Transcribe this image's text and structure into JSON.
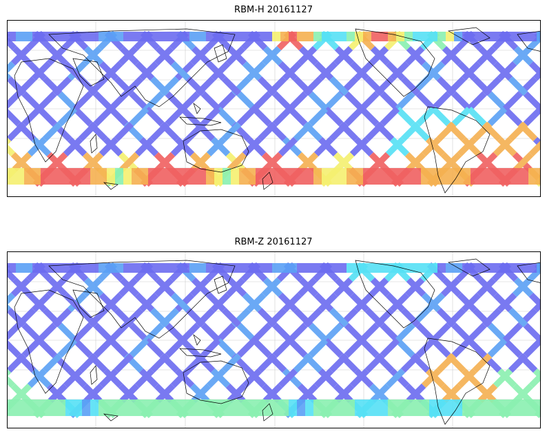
{
  "panels": [
    {
      "title": "RBM-H 20161127",
      "dominant_color": "#6b6bf0",
      "hot_region": "southern-ocean-and-south-atlantic"
    },
    {
      "title": "RBM-Z 20161127",
      "dominant_color": "#6b6bf0",
      "hot_region": "south-atlantic-off-brazil"
    }
  ],
  "colormap": [
    "#6b6bf0",
    "#5aa0f5",
    "#55e0f5",
    "#8af0b0",
    "#f5f070",
    "#f5b050",
    "#f06060"
  ]
}
